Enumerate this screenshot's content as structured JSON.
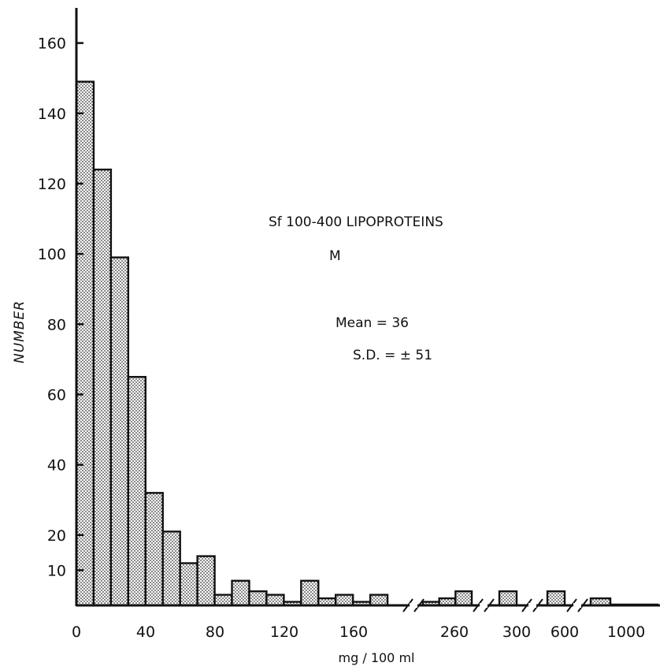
{
  "chart_data": {
    "type": "bar",
    "ylabel": "NUMBER",
    "xlabel": "mg / 100 ml",
    "ylim": [
      0,
      170
    ],
    "y_ticks": [
      10,
      20,
      40,
      60,
      80,
      100,
      120,
      140,
      160
    ],
    "x_ticks": [
      "0",
      "40",
      "80",
      "120",
      "160",
      "260",
      "300",
      "600",
      "1000"
    ],
    "annotations": {
      "title": "Sf 100-400 LIPOPROTEINS",
      "group": "M",
      "mean": "Mean = 36",
      "sd": "S.D. = ± 51"
    },
    "bins": [
      {
        "start": 0,
        "end": 10,
        "value": 149
      },
      {
        "start": 10,
        "end": 20,
        "value": 124
      },
      {
        "start": 20,
        "end": 30,
        "value": 99
      },
      {
        "start": 30,
        "end": 40,
        "value": 65
      },
      {
        "start": 40,
        "end": 50,
        "value": 32
      },
      {
        "start": 50,
        "end": 60,
        "value": 21
      },
      {
        "start": 60,
        "end": 70,
        "value": 12
      },
      {
        "start": 70,
        "end": 80,
        "value": 14
      },
      {
        "start": 80,
        "end": 90,
        "value": 3
      },
      {
        "start": 90,
        "end": 100,
        "value": 7
      },
      {
        "start": 100,
        "end": 110,
        "value": 4
      },
      {
        "start": 110,
        "end": 120,
        "value": 3
      },
      {
        "start": 120,
        "end": 130,
        "value": 1
      },
      {
        "start": 130,
        "end": 140,
        "value": 7
      },
      {
        "start": 140,
        "end": 150,
        "value": 2
      },
      {
        "start": 150,
        "end": 160,
        "value": 3
      },
      {
        "start": 160,
        "end": 170,
        "value": 1
      },
      {
        "start": 170,
        "end": 180,
        "value": 3
      },
      {
        "start": 180,
        "end": 190,
        "value": 0
      },
      {
        "start": 240,
        "end": 250,
        "value": 1
      },
      {
        "start": 250,
        "end": 260,
        "value": 2
      },
      {
        "start": 260,
        "end": 270,
        "value": 4
      },
      {
        "start": 290,
        "end": 300,
        "value": 4
      },
      {
        "start": 500,
        "end": 600,
        "value": 4
      },
      {
        "start": 800,
        "end": 900,
        "value": 2
      }
    ],
    "grid": false,
    "legend": "none"
  }
}
